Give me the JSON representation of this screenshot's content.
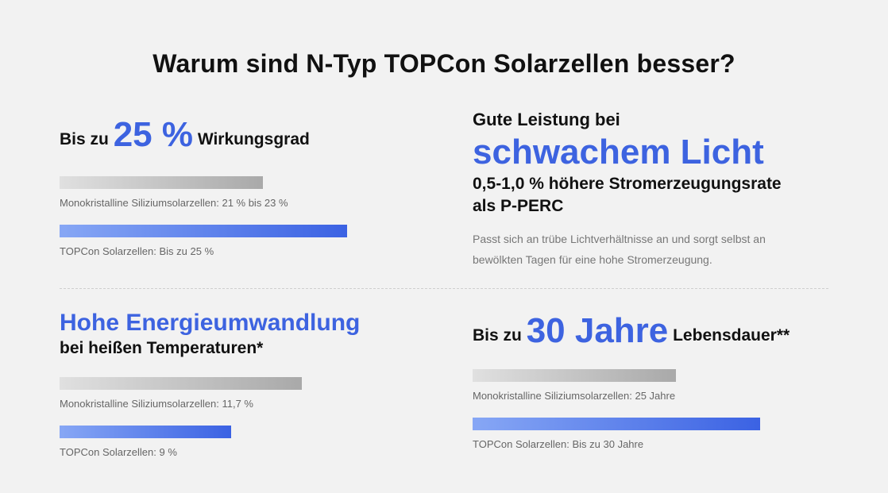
{
  "title": "Warum sind N-Typ TOPCon Solarzellen besser?",
  "efficiency": {
    "prefix": "Bis zu",
    "value": "25 %",
    "suffix": "Wirkungsgrad",
    "bars": [
      {
        "label": "Monokristalline Siliziumsolarzellen: 21 % bis 23 %",
        "fraction": 0.23
      },
      {
        "label": "TOPCon Solarzellen: Bis zu 25 %",
        "fraction": 0.25
      }
    ]
  },
  "low_light": {
    "line1": "Gute Leistung bei",
    "highlight": "schwachem Licht",
    "line3a": "0,5-1,0 % höhere Stromerzeugungsrate",
    "line3b": "als P-PERC",
    "desc1": "Passt sich an trübe Lichtverhältnisse an und sorgt selbst an",
    "desc2": "bewölkten Tagen für eine hohe Stromerzeugung."
  },
  "temperature": {
    "highlight": "Hohe Energieumwandlung",
    "sub": "bei heißen Temperaturen*",
    "bars": [
      {
        "label": "Monokristalline Siliziumsolarzellen: 11,7 %",
        "fraction": 0.117
      },
      {
        "label": "TOPCon Solarzellen: 9 %",
        "fraction": 0.09
      }
    ]
  },
  "lifetime": {
    "prefix": "Bis zu",
    "value": "30 Jahre",
    "suffix": "Lebensdauer**",
    "bars": [
      {
        "label": "Monokristalline Siliziumsolarzellen: 25 Jahre",
        "fraction": 25
      },
      {
        "label": "TOPCon Solarzellen: Bis zu 30 Jahre",
        "fraction": 30
      }
    ]
  },
  "colors": {
    "accent": "#3d63e0",
    "gray_bar_end": "#a9a9a9",
    "blue_bar_end": "#3b62e3"
  }
}
